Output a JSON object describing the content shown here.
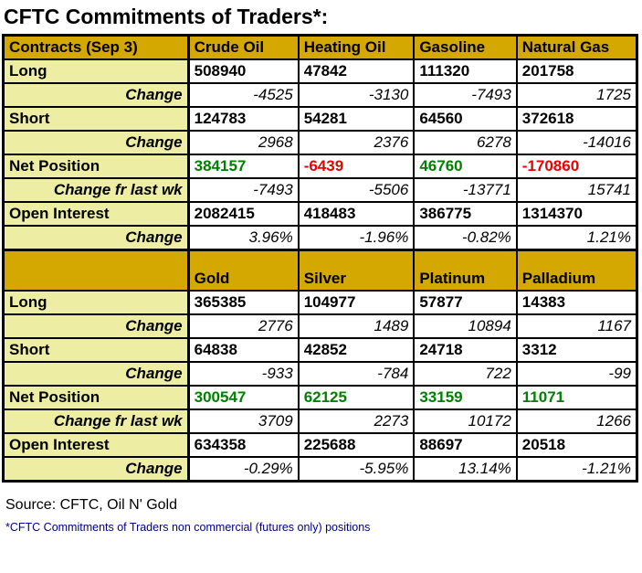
{
  "title": "CFTC Commitments of Traders*:",
  "colors": {
    "header_gold": "#D4A800",
    "label_yellow": "#EDEDA3",
    "positive_green": "#008000",
    "negative_red": "#EE0000",
    "footnote_navy": "#000080",
    "border_black": "#000000"
  },
  "chart_data": {
    "type": "table",
    "title": "CFTC Commitments of Traders*:",
    "sections": [
      {
        "header": [
          "Contracts (Sep 3)",
          "Crude Oil",
          "Heating Oil",
          "Gasoline",
          "Natural Gas"
        ],
        "rows": [
          {
            "label": "Long",
            "type": "value",
            "values": [
              "508940",
              "47842",
              "111320",
              "201758"
            ]
          },
          {
            "label": "Change",
            "type": "change",
            "values": [
              "-4525",
              "-3130",
              "-7493",
              "1725"
            ]
          },
          {
            "label": "Short",
            "type": "value",
            "values": [
              "124783",
              "54281",
              "64560",
              "372618"
            ]
          },
          {
            "label": "Change",
            "type": "change",
            "values": [
              "2968",
              "2376",
              "6278",
              "-14016"
            ]
          },
          {
            "label": "Net Position",
            "type": "net",
            "values": [
              "384157",
              "-6439",
              "46760",
              "-170860"
            ]
          },
          {
            "label": "Change fr last wk",
            "type": "change",
            "values": [
              "-7493",
              "-5506",
              "-13771",
              "15741"
            ]
          },
          {
            "label": "Open Interest",
            "type": "value",
            "values": [
              "2082415",
              "418483",
              "386775",
              "1314370"
            ]
          },
          {
            "label": "Change",
            "type": "change",
            "values": [
              "3.96%",
              "-1.96%",
              "-0.82%",
              "1.21%"
            ]
          }
        ]
      },
      {
        "header": [
          "",
          "Gold",
          "Silver",
          "Platinum",
          "Palladium"
        ],
        "rows": [
          {
            "label": "Long",
            "type": "value",
            "values": [
              "365385",
              "104977",
              "57877",
              "14383"
            ]
          },
          {
            "label": "Change",
            "type": "change",
            "values": [
              "2776",
              "1489",
              "10894",
              "1167"
            ]
          },
          {
            "label": "Short",
            "type": "value",
            "values": [
              "64838",
              "42852",
              "24718",
              "3312"
            ]
          },
          {
            "label": "Change",
            "type": "change",
            "values": [
              "-933",
              "-784",
              "722",
              "-99"
            ]
          },
          {
            "label": "Net Position",
            "type": "net",
            "values": [
              "300547",
              "62125",
              "33159",
              "11071"
            ]
          },
          {
            "label": "Change fr last wk",
            "type": "change",
            "values": [
              "3709",
              "2273",
              "10172",
              "1266"
            ]
          },
          {
            "label": "Open Interest",
            "type": "value",
            "values": [
              "634358",
              "225688",
              "88697",
              "20518"
            ]
          },
          {
            "label": "Change",
            "type": "change",
            "values": [
              "-0.29%",
              "-5.95%",
              "13.14%",
              "-1.21%"
            ]
          }
        ]
      }
    ]
  },
  "footer": {
    "source": "Source: CFTC, Oil N' Gold",
    "footnote": "*CFTC Commitments of Traders non commercial (futures only) positions"
  }
}
